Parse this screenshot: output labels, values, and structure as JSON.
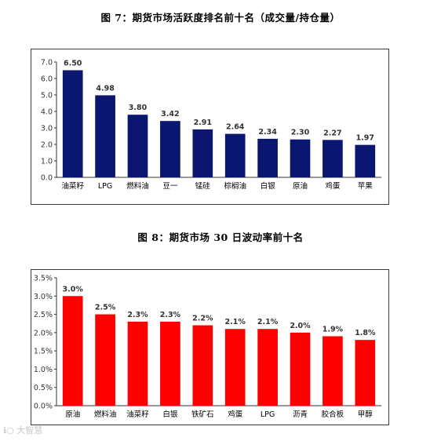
{
  "chart_data": [
    {
      "type": "bar",
      "title": "图 7：期货市场活跃度排名前十名（成交量/持仓量）",
      "categories": [
        "油菜籽",
        "LPG",
        "燃料油",
        "豆一",
        "锰硅",
        "棕榈油",
        "白银",
        "原油",
        "鸡蛋",
        "苹果"
      ],
      "values": [
        6.5,
        4.98,
        3.8,
        3.42,
        2.91,
        2.64,
        2.34,
        2.3,
        2.27,
        1.97
      ],
      "value_labels": [
        "6.50",
        "4.98",
        "3.80",
        "3.42",
        "2.91",
        "2.64",
        "2.34",
        "2.30",
        "2.27",
        "1.97"
      ],
      "yticks": [
        "0.0",
        "1.0",
        "2.0",
        "3.0",
        "4.0",
        "5.0",
        "6.0",
        "7.0"
      ],
      "ylim": [
        0,
        7
      ],
      "xlabel": "",
      "ylabel": "",
      "grid": false,
      "bar_color": "#0a1670"
    },
    {
      "type": "bar",
      "title": "图 8：期货市场 30 日波动率前十名",
      "categories": [
        "原油",
        "燃料油",
        "油菜籽",
        "白银",
        "铁矿石",
        "鸡蛋",
        "LPG",
        "沥青",
        "胶合板",
        "甲醇"
      ],
      "values": [
        3.0,
        2.5,
        2.3,
        2.3,
        2.2,
        2.1,
        2.1,
        2.0,
        1.9,
        1.8
      ],
      "value_labels": [
        "3.0%",
        "2.5%",
        "2.3%",
        "2.3%",
        "2.2%",
        "2.1%",
        "2.1%",
        "2.0%",
        "1.9%",
        "1.8%"
      ],
      "yticks": [
        "0.0%",
        "0.5%",
        "1.0%",
        "1.5%",
        "2.0%",
        "2.5%",
        "3.0%",
        "3.5%"
      ],
      "ylim": [
        0,
        3.5
      ],
      "xlabel": "",
      "ylabel": "",
      "grid": false,
      "bar_color": "#ff0000"
    }
  ]
}
